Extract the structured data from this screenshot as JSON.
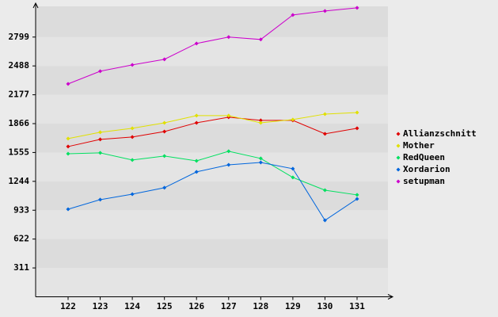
{
  "chart_data": {
    "type": "line",
    "categories": [
      "122",
      "123",
      "124",
      "125",
      "126",
      "127",
      "128",
      "129",
      "130",
      "131"
    ],
    "series": [
      {
        "name": "Allianzschnitt",
        "color": "#e00000",
        "values": [
          1619,
          1696,
          1722,
          1781,
          1875,
          1935,
          1901,
          1901,
          1756,
          1816
        ]
      },
      {
        "name": "Mother",
        "color": "#e0e000",
        "values": [
          1705,
          1773,
          1816,
          1875,
          1952,
          1952,
          1875,
          1910,
          1969,
          1986
        ]
      },
      {
        "name": "RedQueen",
        "color": "#00e060",
        "values": [
          1542,
          1551,
          1474,
          1517,
          1465,
          1568,
          1491,
          1286,
          1149,
          1098
        ]
      },
      {
        "name": "Xordarion",
        "color": "#0066dd",
        "values": [
          944,
          1047,
          1106,
          1175,
          1346,
          1422,
          1448,
          1380,
          824,
          1055
        ]
      },
      {
        "name": "setupman",
        "color": "#cc00cc",
        "values": [
          2294,
          2431,
          2499,
          2559,
          2730,
          2799,
          2773,
          3037,
          3080,
          3114
        ]
      }
    ],
    "ylim": [
      0,
      3130
    ],
    "yticks": [
      311,
      622,
      933,
      1244,
      1555,
      1866,
      2177,
      2488,
      2799
    ],
    "grid": true,
    "legend": "right"
  }
}
